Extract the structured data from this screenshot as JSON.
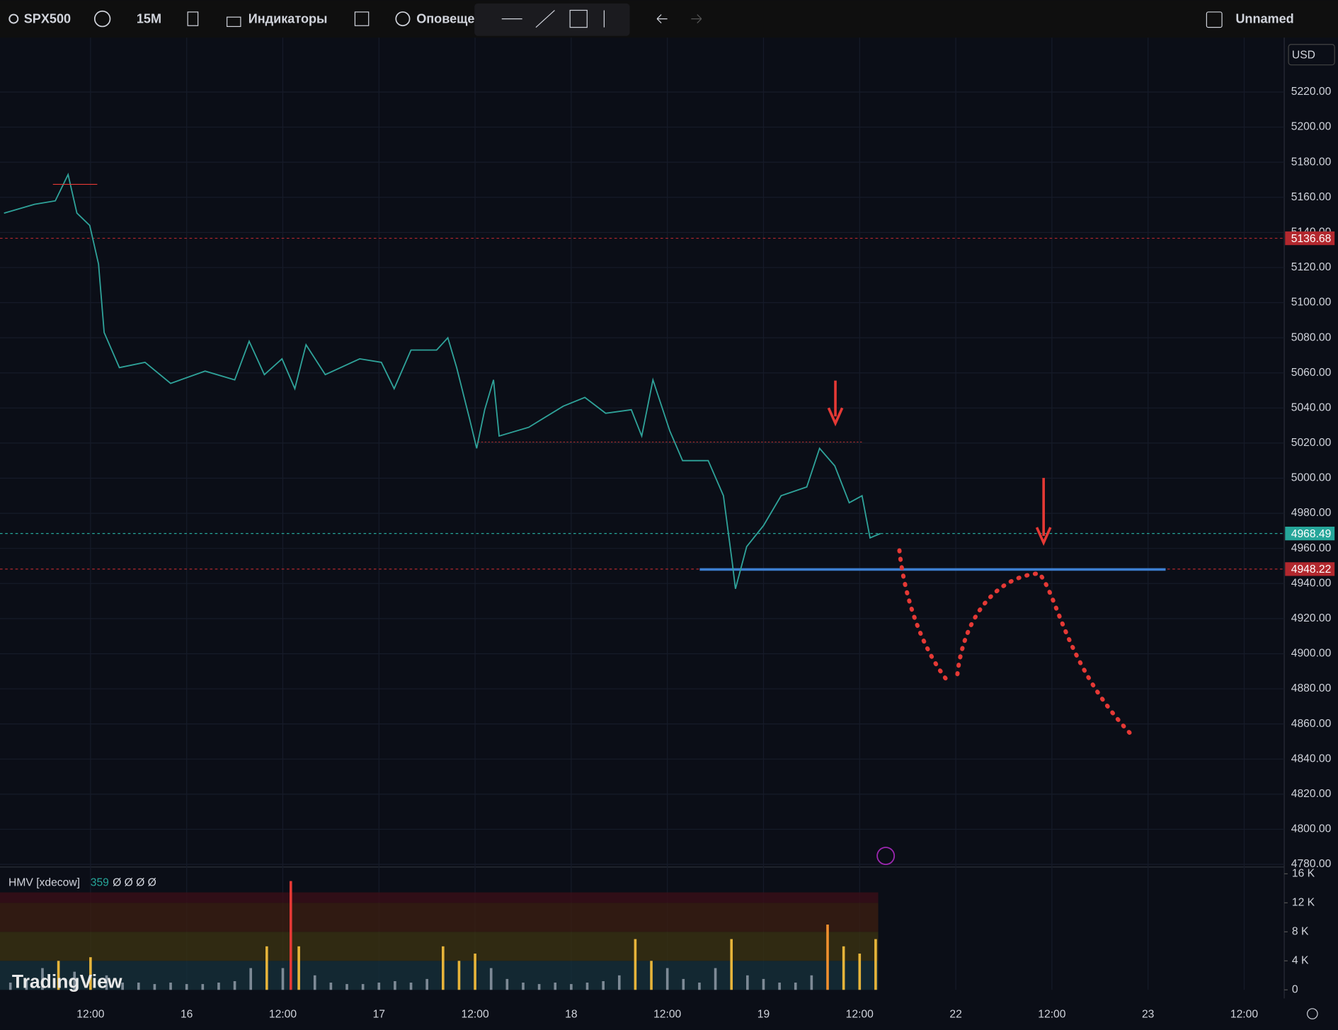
{
  "toolbar": {
    "symbol": "SPX500",
    "interval": "15M",
    "indicators": "Индикаторы",
    "alerts": "Оповещен",
    "layout": "Unnamed"
  },
  "currency": "USD",
  "brand": "TradingView",
  "chart_data": {
    "type": "line",
    "color": "#2fa39a",
    "grid": true,
    "x": [
      1.2,
      5,
      7.6,
      9.2,
      10.3,
      11.9,
      13,
      13.7,
      15.6,
      18.8,
      22,
      26.3,
      30,
      31.8,
      33.7,
      35.9,
      37.5,
      38.9,
      41.3,
      45.6,
      48.3,
      49.9,
      52,
      55.2,
      56.6,
      57.7,
      59.3,
      60.2,
      61.2,
      62.3,
      63,
      66.7,
      71,
      73.7,
      76.3,
      79.5,
      80.8,
      82.2,
      84.3,
      85.9,
      89.1,
      91,
      92.1,
      92.5,
      93.9,
      96,
      98.2,
      101.4,
      103,
      104.9,
      106.7,
      108.3,
      109.3,
      110.6
    ],
    "values": [
      5151,
      5156,
      5158,
      5173,
      5151,
      5144,
      5122,
      5083,
      5063,
      5066,
      5054,
      5061,
      5056,
      5078,
      5059,
      5068,
      5051,
      5076,
      5059,
      5068,
      5066,
      5051,
      5073,
      5073,
      5080,
      5063,
      5034,
      5017,
      5039,
      5056,
      5024,
      5029,
      5041,
      5046,
      5037,
      5039,
      5024,
      5056,
      5027,
      5010,
      5010,
      4990,
      4952,
      4937,
      4961,
      4973,
      4990,
      4995,
      5017,
      5007,
      4986,
      4990,
      4966,
      4968.49
    ],
    "xlim": [
      0.7,
      161
    ],
    "xticks": [
      {
        "value": 12,
        "label": "12:00"
      },
      {
        "value": 24,
        "label": "16"
      },
      {
        "value": 36,
        "label": "12:00"
      },
      {
        "value": 48,
        "label": "17"
      },
      {
        "value": 60,
        "label": "12:00"
      },
      {
        "value": 72,
        "label": "18"
      },
      {
        "value": 84,
        "label": "12:00"
      },
      {
        "value": 96,
        "label": "19"
      },
      {
        "value": 108,
        "label": "12:00"
      },
      {
        "value": 120,
        "label": "22"
      },
      {
        "value": 132,
        "label": "12:00"
      },
      {
        "value": 144,
        "label": "23"
      },
      {
        "value": 156,
        "label": "12:00"
      }
    ],
    "ylim": [
      4779,
      5251
    ],
    "yticks": [
      {
        "value": 4780,
        "label": "4780.00"
      },
      {
        "value": 4800,
        "label": "4800.00"
      },
      {
        "value": 4820,
        "label": "4820.00"
      },
      {
        "value": 4840,
        "label": "4840.00"
      },
      {
        "value": 4860,
        "label": "4860.00"
      },
      {
        "value": 4880,
        "label": "4880.00"
      },
      {
        "value": 4900,
        "label": "4900.00"
      },
      {
        "value": 4920,
        "label": "4920.00"
      },
      {
        "value": 4940,
        "label": "4940.00"
      },
      {
        "value": 4960,
        "label": "4960.00"
      },
      {
        "value": 4980,
        "label": "4980.00"
      },
      {
        "value": 5000,
        "label": "5000.00"
      },
      {
        "value": 5020,
        "label": "5020.00"
      },
      {
        "value": 5040,
        "label": "5040.00"
      },
      {
        "value": 5060,
        "label": "5060.00"
      },
      {
        "value": 5080,
        "label": "5080.00"
      },
      {
        "value": 5100,
        "label": "5100.00"
      },
      {
        "value": 5120,
        "label": "5120.00"
      },
      {
        "value": 5140,
        "label": "5140.00"
      },
      {
        "value": 5160,
        "label": "5160.00"
      },
      {
        "value": 5180,
        "label": "5180.00"
      },
      {
        "value": 5200,
        "label": "5200.00"
      },
      {
        "value": 5220,
        "label": "5220.00"
      }
    ],
    "price_lines": [
      {
        "value": 5136.68,
        "color": "#b2282e"
      },
      {
        "value": 4968.49,
        "color": "#26a69a"
      },
      {
        "value": 4948.22,
        "color": "#b2282e"
      }
    ],
    "support_level": 4948,
    "volume": {
      "name": "HMV [xdecow]",
      "length": 359,
      "readout": "Ø Ø Ø Ø",
      "x": [
        2,
        4,
        6,
        8,
        10,
        12,
        14,
        16,
        18,
        20,
        22,
        24,
        26,
        28,
        30,
        32,
        34,
        36,
        37,
        38,
        40,
        42,
        44,
        46,
        48,
        50,
        52,
        54,
        56,
        58,
        60,
        62,
        64,
        66,
        68,
        70,
        72,
        74,
        76,
        78,
        80,
        82,
        84,
        86,
        88,
        90,
        92,
        94,
        96,
        98,
        100,
        102,
        104,
        106,
        108,
        110
      ],
      "values": [
        1,
        1.5,
        3,
        4,
        2.5,
        4.5,
        2,
        1,
        1,
        0.8,
        1,
        0.8,
        0.8,
        1,
        1.2,
        3,
        6,
        3,
        15,
        6,
        2,
        1,
        0.8,
        0.8,
        1,
        1.2,
        1,
        1.5,
        6,
        4,
        5,
        3,
        1.5,
        1,
        0.8,
        1,
        0.8,
        1,
        1.2,
        2,
        7,
        4,
        3,
        1.5,
        1,
        3,
        7,
        2,
        1.5,
        1,
        1,
        2,
        9,
        6,
        5,
        7
      ],
      "bands": [
        4,
        8,
        12
      ],
      "colors": [
        "#7d8a96",
        "#e6b43a",
        "#f0902e",
        "#e53935"
      ],
      "ylim": [
        0,
        16
      ],
      "yticks": [
        0,
        {
          "value": 4,
          "label": "4 K"
        },
        {
          "value": 8,
          "label": "8 K"
        },
        {
          "value": 12,
          "label": "12 K"
        },
        {
          "value": 16,
          "label": "16 K"
        }
      ]
    }
  }
}
